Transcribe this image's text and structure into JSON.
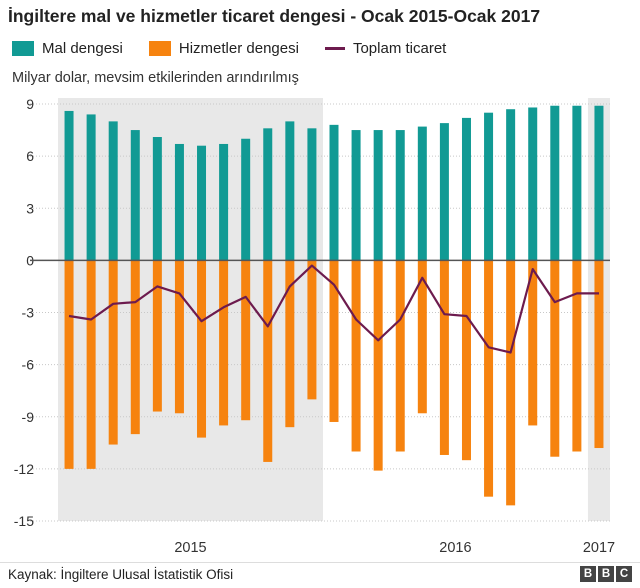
{
  "chart_data": {
    "type": "bar",
    "title": "İngiltere mal ve hizmetler ticaret dengesi - Ocak 2015-Ocak 2017",
    "ylabel": "Milyar dolar, mevsim etkilerinden arındırılmış",
    "ylim": [
      -15,
      9
    ],
    "yticks": [
      9,
      6,
      3,
      0,
      -3,
      -6,
      -9,
      -12,
      -15
    ],
    "grid": true,
    "legend_position": "top",
    "year_labels": [
      "2015",
      "2016",
      "2017"
    ],
    "categories": [
      "2015-01",
      "2015-02",
      "2015-03",
      "2015-04",
      "2015-05",
      "2015-06",
      "2015-07",
      "2015-08",
      "2015-09",
      "2015-10",
      "2015-11",
      "2015-12",
      "2016-01",
      "2016-02",
      "2016-03",
      "2016-04",
      "2016-05",
      "2016-06",
      "2016-07",
      "2016-08",
      "2016-09",
      "2016-10",
      "2016-11",
      "2016-12",
      "2017-01"
    ],
    "series": [
      {
        "name": "Mal dengesi",
        "kind": "bar",
        "color": "#119a94",
        "values": [
          8.6,
          8.4,
          8.0,
          7.5,
          7.1,
          6.7,
          6.6,
          6.7,
          7.0,
          7.6,
          8.0,
          7.6,
          7.8,
          7.5,
          7.5,
          7.5,
          7.7,
          7.9,
          8.2,
          8.5,
          8.7,
          8.8,
          8.9,
          8.9,
          8.9
        ]
      },
      {
        "name": "Hizmetler dengesi",
        "kind": "bar",
        "color": "#f6830f",
        "values": [
          -12.0,
          -12.0,
          -10.6,
          -10.0,
          -8.7,
          -8.8,
          -10.2,
          -9.5,
          -9.2,
          -11.6,
          -9.6,
          -8.0,
          -9.3,
          -11.0,
          -12.1,
          -11.0,
          -8.8,
          -11.2,
          -11.5,
          -13.6,
          -14.1,
          -9.5,
          -11.3,
          -11.0,
          -10.8
        ]
      },
      {
        "name": "Toplam ticaret",
        "kind": "line",
        "color": "#6d1b4e",
        "values": [
          -3.2,
          -3.4,
          -2.5,
          -2.4,
          -1.5,
          -1.9,
          -3.5,
          -2.7,
          -2.1,
          -3.8,
          -1.5,
          -0.3,
          -1.4,
          -3.4,
          -4.6,
          -3.4,
          -1.0,
          -3.1,
          -3.2,
          -5.0,
          -5.3,
          -0.5,
          -2.4,
          -1.9,
          -1.9
        ]
      }
    ]
  },
  "footer": {
    "source": "Kaynak: İngiltere Ulusal İstatistik Ofisi",
    "logo_letters": [
      "B",
      "B",
      "C"
    ]
  }
}
